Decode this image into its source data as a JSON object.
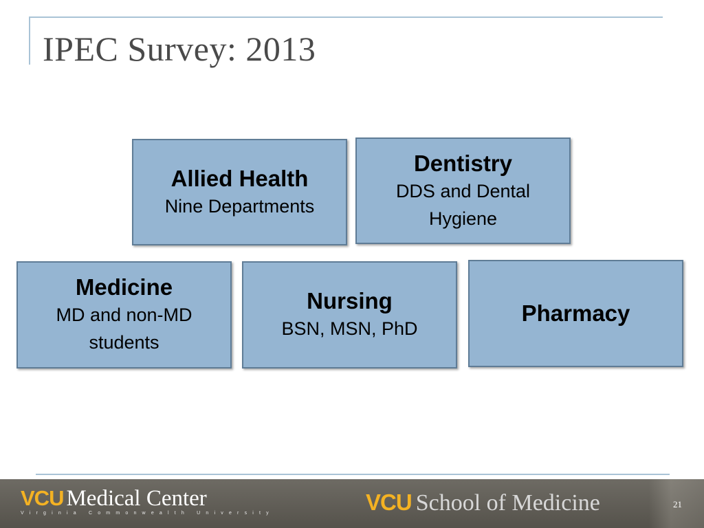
{
  "slide": {
    "title": "IPEC Survey: 2013",
    "boxes": [
      {
        "heading": "Allied Health",
        "detail": "Nine Departments"
      },
      {
        "heading": "Dentistry",
        "detail": "DDS and Dental Hygiene"
      },
      {
        "heading": "Medicine",
        "detail": "MD and non-MD students"
      },
      {
        "heading": "Nursing",
        "detail": "BSN, MSN, PhD"
      },
      {
        "heading": "Pharmacy",
        "detail": ""
      }
    ]
  },
  "footer": {
    "left_logo_vcu": "VCU",
    "left_logo_text": "Medical Center",
    "left_logo_tagline": "Virginia Commonwealth University",
    "right_logo_vcu": "VCU",
    "right_logo_text": "School of Medicine",
    "page_number": "21"
  },
  "colors": {
    "box_fill": "#95b5d2",
    "box_border": "#5f7c96",
    "title_text": "#4a4a4a",
    "vcu_gold": "#f4b223",
    "footer_bg": "#625f58"
  }
}
